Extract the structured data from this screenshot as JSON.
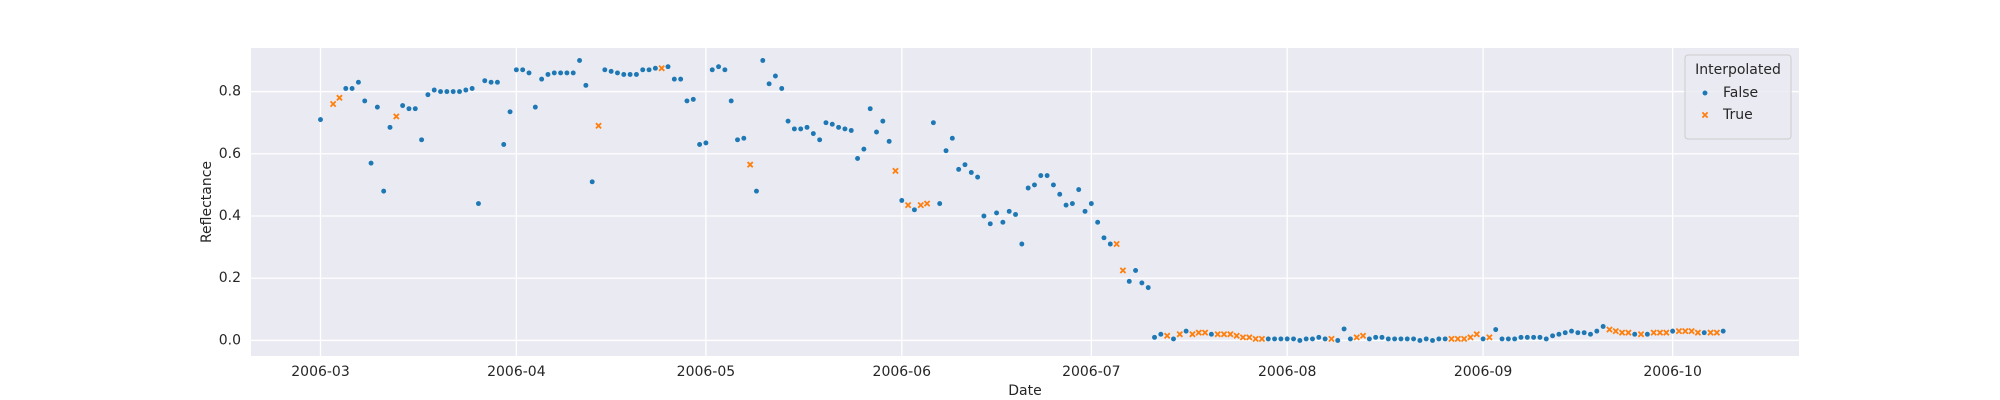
{
  "chart_data": {
    "type": "scatter",
    "xlabel": "Date",
    "ylabel": "Reflectance",
    "legend_title": "Interpolated",
    "legend": "upper right",
    "grid": true,
    "xlim": [
      -11,
      234
    ],
    "xticks": [
      {
        "value": 0,
        "label": "2006-03"
      },
      {
        "value": 31,
        "label": "2006-04"
      },
      {
        "value": 61,
        "label": "2006-05"
      },
      {
        "value": 92,
        "label": "2006-06"
      },
      {
        "value": 122,
        "label": "2006-07"
      },
      {
        "value": 153,
        "label": "2006-08"
      },
      {
        "value": 184,
        "label": "2006-09"
      },
      {
        "value": 214,
        "label": "2006-10"
      }
    ],
    "ylim": [
      -0.05,
      0.94
    ],
    "yticks": [
      {
        "value": 0,
        "label": "0.0"
      },
      0.2,
      0.4,
      0.6,
      0.8
    ],
    "series": [
      {
        "name": "False",
        "color": "#1f77b4",
        "marker": "circle",
        "x": [
          0,
          4,
          5,
          6,
          7,
          8,
          9,
          10,
          11,
          13,
          14,
          15,
          16,
          17,
          18,
          19,
          20,
          21,
          22,
          23,
          24,
          25,
          26,
          27,
          28,
          29,
          30,
          31,
          32,
          33,
          34,
          35,
          36,
          37,
          38,
          39,
          40,
          41,
          42,
          43,
          45,
          46,
          47,
          48,
          49,
          50,
          51,
          52,
          53,
          55,
          56,
          57,
          58,
          59,
          60,
          61,
          62,
          63,
          64,
          65,
          66,
          67,
          69,
          70,
          71,
          72,
          73,
          74,
          75,
          76,
          77,
          78,
          79,
          80,
          81,
          82,
          83,
          84,
          85,
          86,
          87,
          88,
          89,
          90,
          92,
          94,
          97,
          98,
          99,
          100,
          101,
          102,
          103,
          104,
          105,
          106,
          107,
          108,
          109,
          110,
          111,
          112,
          113,
          114,
          115,
          116,
          117,
          118,
          119,
          120,
          121,
          122,
          123,
          124,
          125,
          128,
          129,
          130,
          131,
          132,
          133,
          135,
          137,
          141,
          150,
          151,
          152,
          153,
          154,
          155,
          156,
          157,
          158,
          159,
          161,
          162,
          163,
          166,
          167,
          168,
          169,
          170,
          171,
          172,
          173,
          174,
          175,
          176,
          177,
          178,
          184,
          186,
          187,
          188,
          189,
          190,
          191,
          192,
          193,
          194,
          195,
          196,
          197,
          198,
          199,
          200,
          201,
          202,
          203,
          208,
          210,
          214,
          219,
          222
        ],
        "values": [
          0.71,
          0.81,
          0.81,
          0.83,
          0.77,
          0.57,
          0.75,
          0.48,
          0.685,
          0.755,
          0.745,
          0.745,
          0.645,
          0.79,
          0.805,
          0.8,
          0.8,
          0.8,
          0.8,
          0.805,
          0.81,
          0.44,
          0.835,
          0.83,
          0.83,
          0.63,
          0.735,
          0.87,
          0.87,
          0.86,
          0.75,
          0.84,
          0.855,
          0.86,
          0.86,
          0.86,
          0.86,
          0.9,
          0.82,
          0.51,
          0.87,
          0.865,
          0.86,
          0.855,
          0.855,
          0.855,
          0.87,
          0.87,
          0.875,
          0.88,
          0.84,
          0.84,
          0.77,
          0.775,
          0.63,
          0.635,
          0.87,
          0.88,
          0.87,
          0.77,
          0.645,
          0.65,
          0.48,
          0.9,
          0.825,
          0.85,
          0.81,
          0.705,
          0.68,
          0.68,
          0.685,
          0.665,
          0.645,
          0.7,
          0.695,
          0.685,
          0.68,
          0.675,
          0.585,
          0.615,
          0.745,
          0.67,
          0.705,
          0.64,
          0.45,
          0.42,
          0.7,
          0.44,
          0.61,
          0.65,
          0.55,
          0.565,
          0.54,
          0.525,
          0.4,
          0.375,
          0.41,
          0.38,
          0.415,
          0.405,
          0.31,
          0.49,
          0.5,
          0.53,
          0.53,
          0.5,
          0.47,
          0.435,
          0.44,
          0.485,
          0.415,
          0.44,
          0.38,
          0.33,
          0.31,
          0.19,
          0.225,
          0.185,
          0.17,
          0.01,
          0.02,
          0.005,
          0.03,
          0.02,
          0.005,
          0.005,
          0.005,
          0.005,
          0.005,
          0,
          0.005,
          0.005,
          0.01,
          0.005,
          0,
          0.037,
          0.005,
          0.005,
          0.01,
          0.01,
          0.005,
          0.005,
          0.005,
          0.005,
          0.005,
          0,
          0.005,
          0,
          0.005,
          0.005,
          0.005,
          0.035,
          0.005,
          0.005,
          0.005,
          0.01,
          0.01,
          0.01,
          0.01,
          0.005,
          0.015,
          0.02,
          0.025,
          0.03,
          0.025,
          0.025,
          0.02,
          0.03,
          0.045,
          0.02,
          0.02,
          0.03,
          0.025,
          0.03
        ]
      },
      {
        "name": "True",
        "color": "#ff7f0e",
        "marker": "x",
        "x": [
          2,
          3,
          12,
          44,
          54,
          68,
          91,
          93,
          95,
          96,
          126,
          127,
          134,
          136,
          138,
          139,
          140,
          142,
          143,
          144,
          145,
          146,
          147,
          148,
          149,
          160,
          164,
          165,
          179,
          180,
          181,
          182,
          183,
          185,
          204,
          205,
          206,
          207,
          209,
          211,
          212,
          213,
          215,
          216,
          217,
          218,
          220,
          221
        ],
        "values": [
          0.76,
          0.78,
          0.72,
          0.69,
          0.875,
          0.565,
          0.545,
          0.435,
          0.435,
          0.44,
          0.31,
          0.225,
          0.015,
          0.02,
          0.02,
          0.025,
          0.025,
          0.02,
          0.02,
          0.02,
          0.015,
          0.01,
          0.01,
          0.005,
          0.005,
          0.005,
          0.01,
          0.015,
          0.005,
          0.005,
          0.005,
          0.01,
          0.02,
          0.01,
          0.035,
          0.03,
          0.025,
          0.025,
          0.02,
          0.025,
          0.025,
          0.025,
          0.03,
          0.03,
          0.03,
          0.025,
          0.025,
          0.025
        ]
      }
    ]
  }
}
